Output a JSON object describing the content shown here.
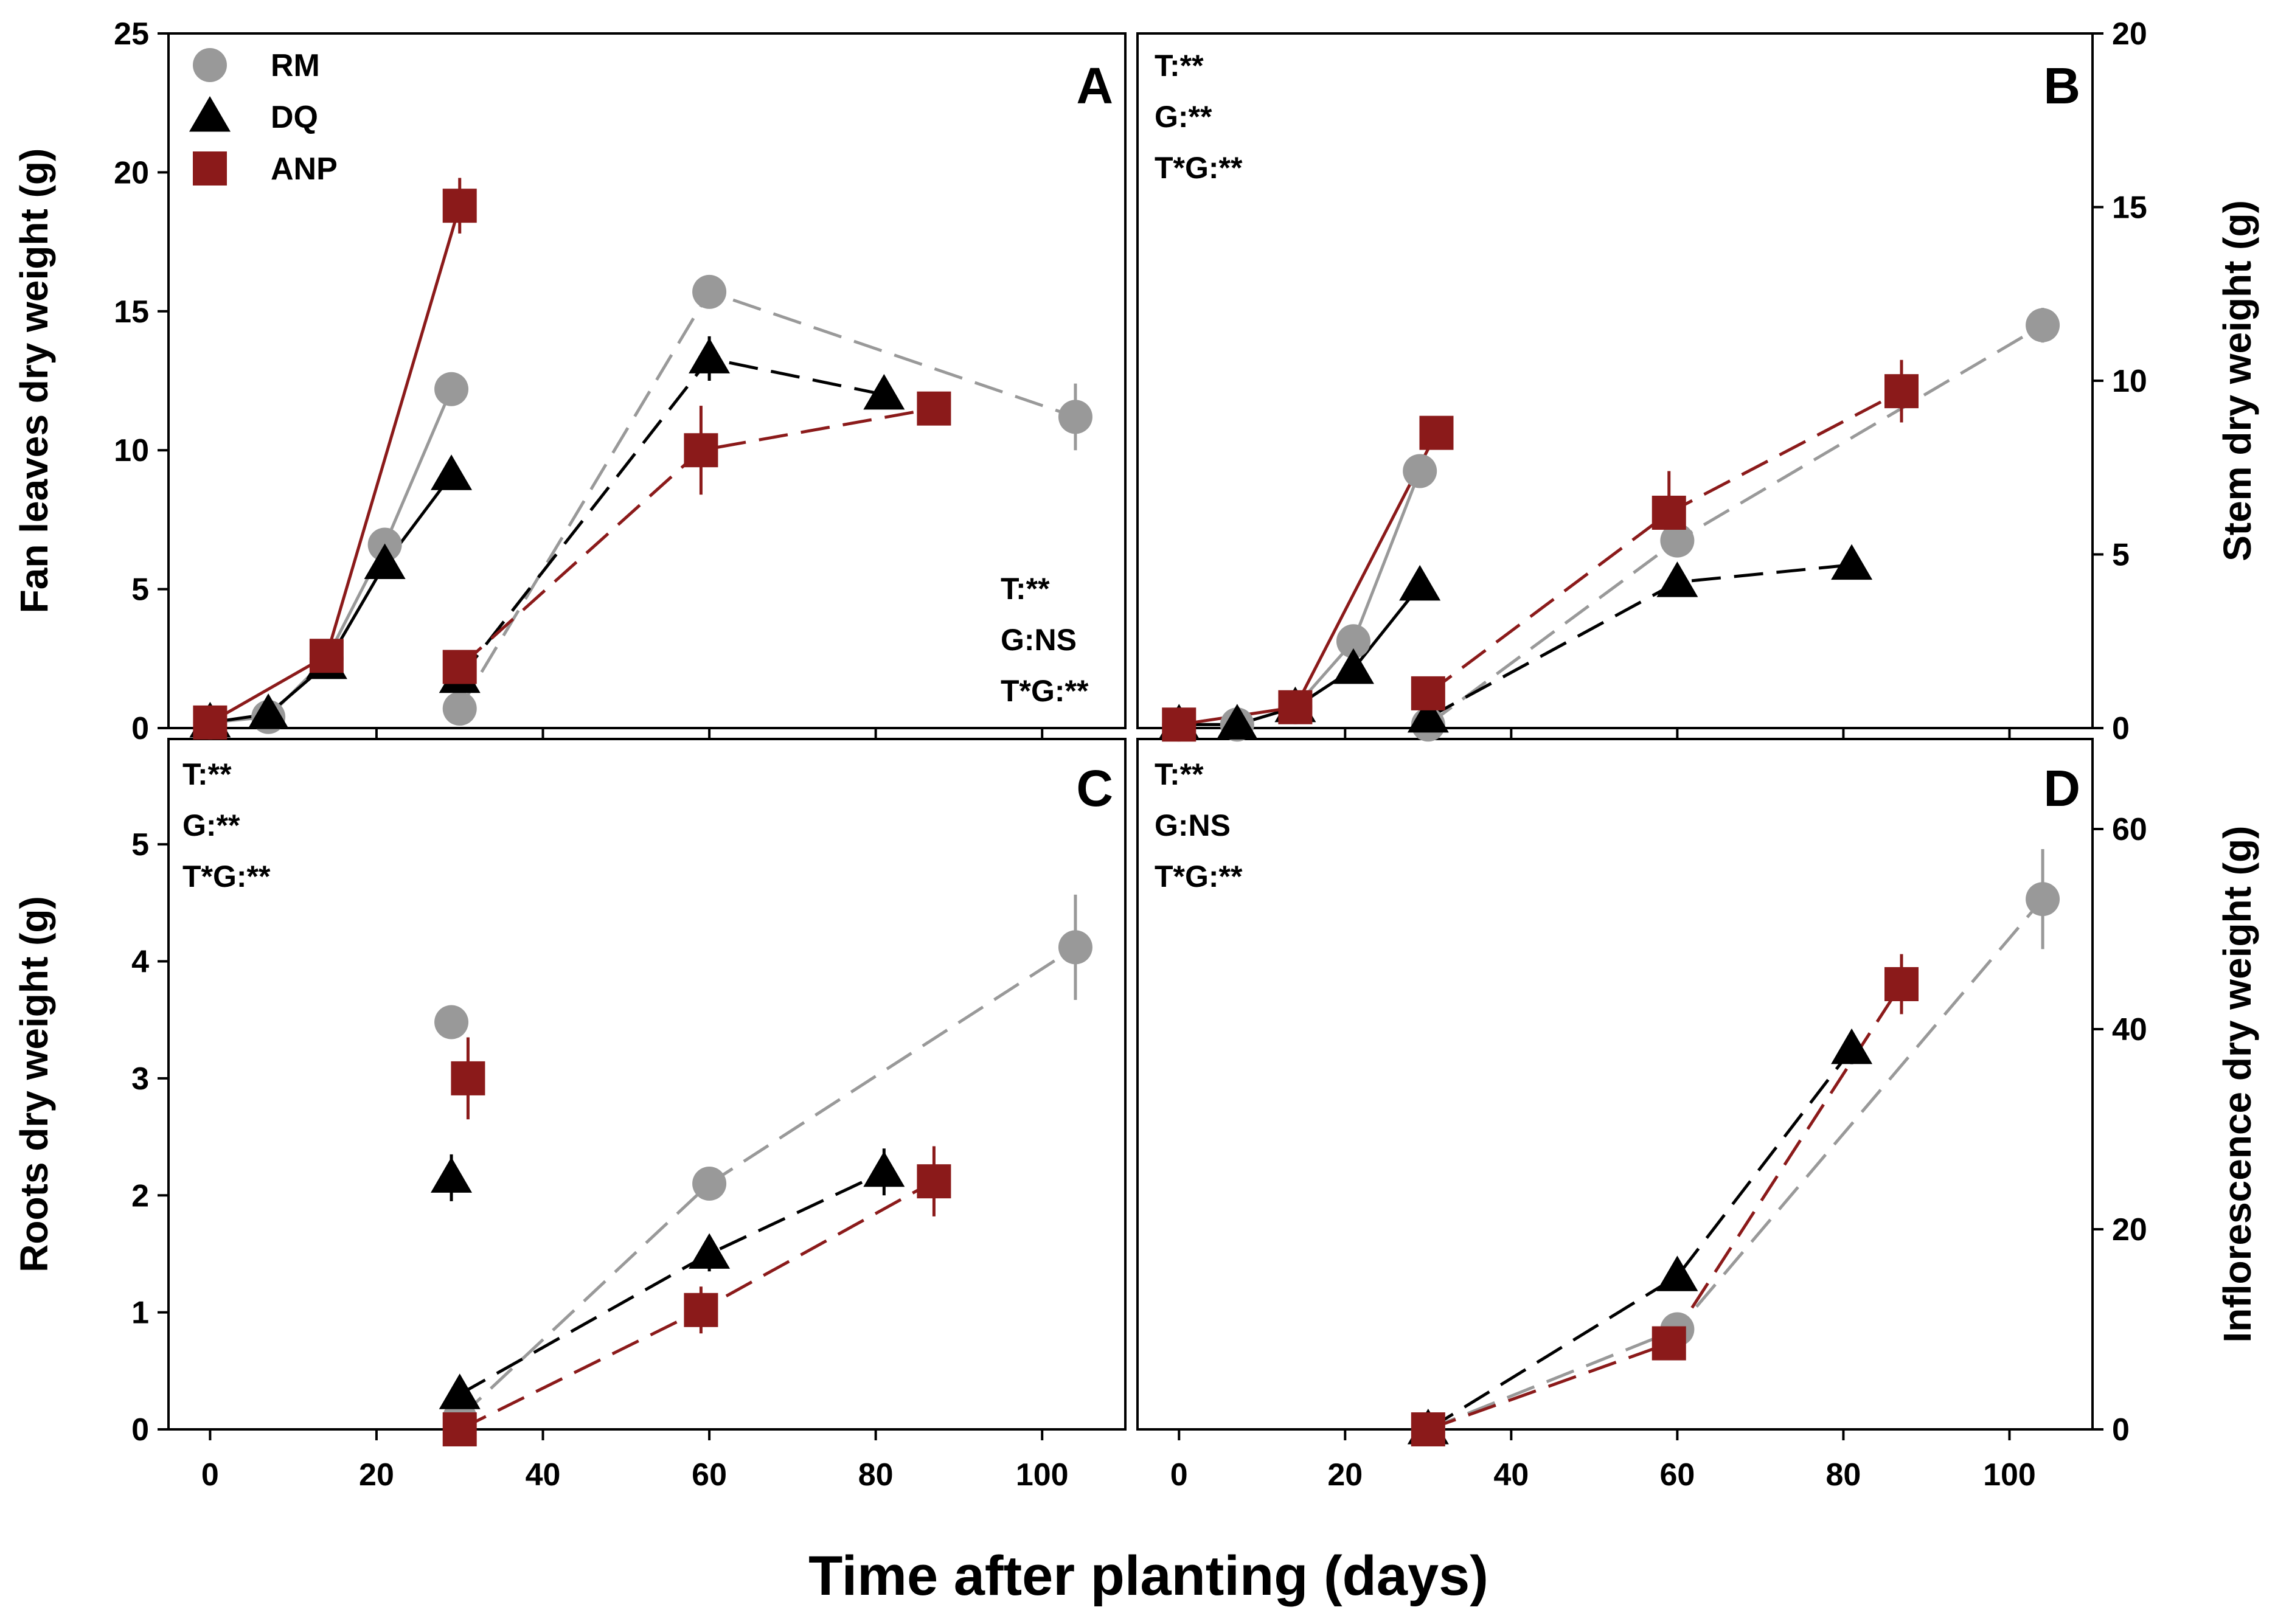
{
  "colors": {
    "RM": "#999999",
    "DQ": "#000000",
    "ANP": "#8b1a1a",
    "frame": "#000000"
  },
  "figure": {
    "xlabel": "Time after planting (days)",
    "x_ticks": [
      "0",
      "20",
      "40",
      "60",
      "80",
      "100"
    ],
    "legend": [
      {
        "name": "RM",
        "marker": "circle"
      },
      {
        "name": "DQ",
        "marker": "triangle"
      },
      {
        "name": "ANP",
        "marker": "square"
      }
    ]
  },
  "chart_data": [
    {
      "id": "A",
      "type": "line",
      "panel_label": "A",
      "ylabel": "Fan leaves dry weight (g)",
      "ylim": [
        0,
        25
      ],
      "xlim": [
        -5,
        110
      ],
      "y_ticks": [
        "0",
        "5",
        "10",
        "15",
        "20",
        "25"
      ],
      "stats": [
        "T:**",
        "G:NS",
        "T*G:**"
      ],
      "series": [
        {
          "name": "RM",
          "style": "solid",
          "x": [
            0,
            7,
            14,
            21,
            29
          ],
          "y": [
            0.2,
            0.4,
            2.5,
            6.6,
            12.2
          ],
          "err": [
            0,
            0.2,
            0.3,
            0.4,
            0.5
          ]
        },
        {
          "name": "DQ",
          "style": "solid",
          "x": [
            0,
            7,
            14,
            21,
            29
          ],
          "y": [
            0.2,
            0.5,
            2.3,
            5.9,
            9.1
          ],
          "err": [
            0,
            0.2,
            0.3,
            0.4,
            0.5
          ]
        },
        {
          "name": "ANP",
          "style": "solid",
          "x": [
            0,
            14,
            30
          ],
          "y": [
            0.2,
            2.6,
            18.8
          ],
          "err": [
            0,
            0.3,
            1.0
          ]
        },
        {
          "name": "RM",
          "style": "dashed",
          "x": [
            30,
            60,
            104
          ],
          "y": [
            0.7,
            15.7,
            11.2
          ],
          "err": [
            0.2,
            0.4,
            1.2
          ]
        },
        {
          "name": "DQ",
          "style": "dashed",
          "x": [
            30,
            60,
            81
          ],
          "y": [
            1.8,
            13.3,
            12.0
          ],
          "err": [
            0.3,
            0.8,
            0.5
          ]
        },
        {
          "name": "ANP",
          "style": "dashed",
          "x": [
            30,
            59,
            87
          ],
          "y": [
            2.2,
            10.0,
            11.5
          ],
          "err": [
            0.4,
            1.6,
            0.5
          ]
        }
      ]
    },
    {
      "id": "B",
      "type": "line",
      "panel_label": "B",
      "ylabel": "Stem dry weight (g)",
      "ylim": [
        0,
        20
      ],
      "xlim": [
        -5,
        110
      ],
      "y_ticks": [
        "0",
        "5",
        "10",
        "15",
        "20"
      ],
      "stats": [
        "T:**",
        "G:**",
        "T*G:**"
      ],
      "series": [
        {
          "name": "RM",
          "style": "solid",
          "x": [
            0,
            7,
            14,
            21,
            29
          ],
          "y": [
            0.1,
            0.1,
            0.6,
            2.5,
            7.4
          ],
          "err": [
            0,
            0.1,
            0.1,
            0.3,
            0.4
          ]
        },
        {
          "name": "DQ",
          "style": "solid",
          "x": [
            0,
            7,
            14,
            21,
            29
          ],
          "y": [
            0.1,
            0.1,
            0.6,
            1.7,
            4.1
          ],
          "err": [
            0,
            0.1,
            0.1,
            0.2,
            0.3
          ]
        },
        {
          "name": "ANP",
          "style": "solid",
          "x": [
            0,
            14,
            31
          ],
          "y": [
            0.1,
            0.6,
            8.5
          ],
          "err": [
            0,
            0.1,
            0.4
          ]
        },
        {
          "name": "RM",
          "style": "dashed",
          "x": [
            30,
            60,
            104
          ],
          "y": [
            0.1,
            5.4,
            11.6
          ],
          "err": [
            0,
            0.4,
            0.5
          ]
        },
        {
          "name": "DQ",
          "style": "dashed",
          "x": [
            30,
            60,
            81
          ],
          "y": [
            0.3,
            4.2,
            4.7
          ],
          "err": [
            0,
            0.4,
            0.3
          ]
        },
        {
          "name": "ANP",
          "style": "dashed",
          "x": [
            30,
            59,
            87
          ],
          "y": [
            1.0,
            6.2,
            9.7
          ],
          "err": [
            0.2,
            1.2,
            0.9
          ]
        }
      ]
    },
    {
      "id": "C",
      "type": "line",
      "panel_label": "C",
      "ylabel": "Roots dry weight (g)",
      "ylim": [
        0,
        5.9
      ],
      "xlim": [
        -5,
        110
      ],
      "y_ticks": [
        "0",
        "1",
        "2",
        "3",
        "4",
        "5"
      ],
      "stats": [
        "T:**",
        "G:**",
        "T*G:**"
      ],
      "series": [
        {
          "name": "RM",
          "style": "points",
          "x": [
            29
          ],
          "y": [
            3.48
          ],
          "err": [
            0.08
          ]
        },
        {
          "name": "DQ",
          "style": "points",
          "x": [
            29
          ],
          "y": [
            2.15
          ],
          "err": [
            0.2
          ]
        },
        {
          "name": "ANP",
          "style": "points",
          "x": [
            31
          ],
          "y": [
            3.0
          ],
          "err": [
            0.35
          ]
        },
        {
          "name": "RM",
          "style": "dashed",
          "x": [
            30,
            60,
            104
          ],
          "y": [
            0.1,
            2.1,
            4.12
          ],
          "err": [
            0,
            0.1,
            0.45
          ]
        },
        {
          "name": "DQ",
          "style": "dashed",
          "x": [
            30,
            60,
            81
          ],
          "y": [
            0.3,
            1.5,
            2.2
          ],
          "err": [
            0,
            0.15,
            0.2
          ]
        },
        {
          "name": "ANP",
          "style": "dashed",
          "x": [
            30,
            59,
            87
          ],
          "y": [
            0.0,
            1.02,
            2.12
          ],
          "err": [
            0,
            0.2,
            0.3
          ]
        }
      ]
    },
    {
      "id": "D",
      "type": "line",
      "panel_label": "D",
      "ylabel": "Inflorescence dry weight (g)",
      "ylim": [
        0,
        69
      ],
      "xlim": [
        -5,
        110
      ],
      "y_ticks": [
        "0",
        "20",
        "40",
        "60"
      ],
      "stats": [
        "T:**",
        "G:NS",
        "T*G:**"
      ],
      "series": [
        {
          "name": "RM",
          "style": "dashed",
          "x": [
            30,
            60,
            104
          ],
          "y": [
            0,
            10,
            53
          ],
          "err": [
            0,
            0.8,
            5
          ]
        },
        {
          "name": "DQ",
          "style": "dashed",
          "x": [
            30,
            60,
            81
          ],
          "y": [
            0,
            15.3,
            38
          ],
          "err": [
            0,
            0.8,
            1.5
          ]
        },
        {
          "name": "ANP",
          "style": "dashed",
          "x": [
            30,
            59,
            87
          ],
          "y": [
            0,
            8.6,
            44.5
          ],
          "err": [
            0,
            1.0,
            3.0
          ]
        }
      ]
    }
  ]
}
